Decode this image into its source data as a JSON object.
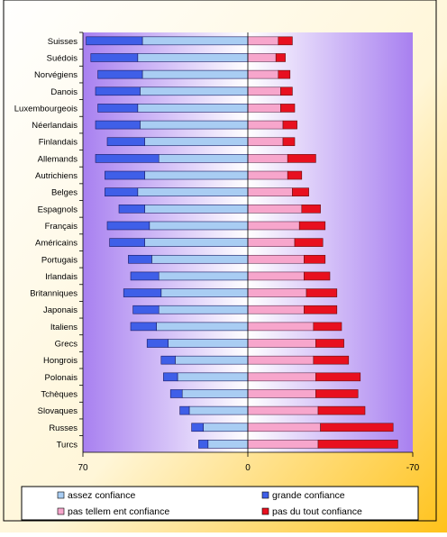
{
  "chart_data": {
    "type": "bar",
    "orientation": "horizontal-diverging",
    "categories": [
      "Suisses",
      "Suédois",
      "Norvégiens",
      "Danois",
      "Luxembourgeois",
      "Néerlandais",
      "Finlandais",
      "Allemands",
      "Autrichiens",
      "Belges",
      "Espagnols",
      "Français",
      "Américains",
      "Portugais",
      "Irlandais",
      "Britanniques",
      "Japonais",
      "Italiens",
      "Grecs",
      "Hongrois",
      "Polonais",
      "Tchèques",
      "Slovaques",
      "Russes",
      "Turcs"
    ],
    "series": [
      {
        "name": "grande confiance",
        "color": "#3f5fe8",
        "side": "left",
        "values": [
          24,
          20,
          19,
          19,
          17,
          19,
          16,
          27,
          17,
          14,
          11,
          18,
          15,
          10,
          12,
          16,
          11,
          11,
          9,
          6,
          6,
          5,
          4,
          5,
          4
        ]
      },
      {
        "name": "assez confiance",
        "color": "#a9cdf3",
        "side": "left",
        "values": [
          45,
          47,
          45,
          46,
          47,
          46,
          44,
          38,
          44,
          47,
          44,
          42,
          44,
          41,
          38,
          37,
          38,
          39,
          34,
          31,
          30,
          28,
          25,
          19,
          17
        ]
      },
      {
        "name": "pas tellem ent confiance",
        "color": "#f7a6cc",
        "side": "right",
        "values": [
          13,
          12,
          13,
          14,
          14,
          15,
          15,
          17,
          17,
          19,
          23,
          22,
          20,
          24,
          24,
          25,
          24,
          28,
          29,
          28,
          29,
          29,
          30,
          31,
          30
        ]
      },
      {
        "name": "pas du tout confiance",
        "color": "#e8101f",
        "side": "right",
        "values": [
          6,
          4,
          5,
          5,
          6,
          6,
          5,
          12,
          6,
          7,
          8,
          11,
          12,
          9,
          11,
          13,
          14,
          12,
          12,
          15,
          19,
          18,
          20,
          31,
          34
        ]
      }
    ],
    "xlim": [
      70,
      -70
    ],
    "x_ticks": [
      "70",
      "0",
      "-70"
    ],
    "legend_position": "bottom",
    "background_gradient": [
      "#a880f0",
      "#ffffff",
      "#ffd23a"
    ]
  }
}
